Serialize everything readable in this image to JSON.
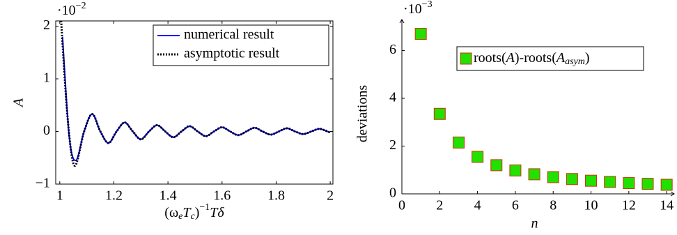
{
  "chart_data": [
    {
      "type": "line",
      "xlabel_parts": [
        "(ω",
        "e",
        "T",
        "c",
        ")",
        "−1",
        "Tδ"
      ],
      "ylabel": "A",
      "y_multiplier": {
        "base": "·10",
        "exponent": "−2"
      },
      "xlim": [
        0.985,
        2.01
      ],
      "ylim": [
        -1,
        2.1
      ],
      "xticks": [
        1,
        1.2,
        1.4,
        1.6,
        1.8,
        2
      ],
      "yticks": [
        {
          "value": -1,
          "label": "−1"
        },
        0,
        1,
        2
      ],
      "legend": "top-right",
      "frame": "box",
      "series": [
        {
          "name": "numerical result",
          "color": "#0000ff",
          "dash": "solid",
          "x": [
            1.01,
            1.035,
            1.06,
            1.09,
            1.12,
            1.15,
            1.18,
            1.21,
            1.24,
            1.27,
            1.3,
            1.33,
            1.36,
            1.39,
            1.42,
            1.45,
            1.48,
            1.51,
            1.54,
            1.57,
            1.6,
            1.63,
            1.66,
            1.69,
            1.72,
            1.75,
            1.78,
            1.81,
            1.84,
            1.87,
            1.9,
            1.93,
            1.96,
            1.99,
            2.0
          ],
          "values": [
            1.8,
            -0.1,
            -0.55,
            0,
            0.33,
            0,
            -0.22,
            0,
            0.17,
            0,
            -0.15,
            0,
            0.12,
            0,
            -0.11,
            0,
            0.1,
            0,
            -0.09,
            0,
            0.08,
            0,
            -0.07,
            0,
            0.07,
            0,
            -0.06,
            0,
            0.06,
            0,
            -0.05,
            0,
            0.05,
            0,
            -0.02
          ]
        },
        {
          "name": "asymptotic result",
          "color": "#000000",
          "dash": "dotted",
          "x": [
            1.005,
            1.03,
            1.055,
            1.09,
            1.12,
            1.15,
            1.18,
            1.21,
            1.24,
            1.27,
            1.3,
            1.33,
            1.36,
            1.39,
            1.42,
            1.45,
            1.48,
            1.51,
            1.54,
            1.57,
            1.6,
            1.63,
            1.66,
            1.69,
            1.72,
            1.75,
            1.78,
            1.81,
            1.84,
            1.87,
            1.9,
            1.93,
            1.96,
            1.99,
            2.0
          ],
          "values": [
            2.1,
            0.2,
            -0.65,
            0,
            0.33,
            0,
            -0.22,
            0,
            0.17,
            0,
            -0.15,
            0,
            0.12,
            0,
            -0.11,
            0,
            0.1,
            0,
            -0.09,
            0,
            0.08,
            0,
            -0.07,
            0,
            0.07,
            0,
            -0.06,
            0,
            0.06,
            0,
            -0.05,
            0,
            0.05,
            0,
            -0.02
          ]
        }
      ]
    },
    {
      "type": "scatter",
      "xlabel": "n",
      "ylabel": "deviations",
      "y_multiplier": {
        "base": "·10",
        "exponent": "−3"
      },
      "xlim": [
        0,
        14.4
      ],
      "ylim": [
        0,
        7.3
      ],
      "xticks": [
        0,
        2,
        4,
        6,
        8,
        10,
        12,
        14
      ],
      "yticks": [
        0,
        2,
        4,
        6
      ],
      "legend": "top-right",
      "frame": "arrows",
      "series": [
        {
          "name_parts": [
            "roots(",
            "A",
            ")-roots(",
            "A",
            "asym",
            ")"
          ],
          "color": "#22e000",
          "edge_color": "#cc3300",
          "x": [
            1,
            2,
            3,
            4,
            5,
            6,
            7,
            8,
            9,
            10,
            11,
            12,
            13,
            14
          ],
          "values": [
            6.7,
            3.35,
            2.15,
            1.55,
            1.2,
            0.98,
            0.82,
            0.7,
            0.62,
            0.55,
            0.5,
            0.45,
            0.42,
            0.38
          ]
        }
      ]
    }
  ]
}
